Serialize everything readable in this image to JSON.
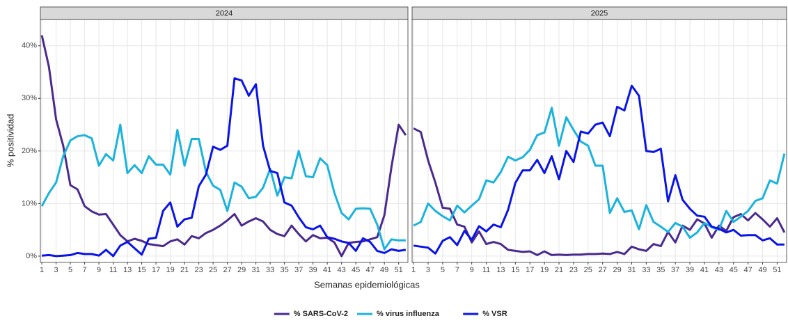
{
  "chart_data": [
    {
      "type": "line",
      "title": "2024",
      "x_label": "Semanas epidemiológicas",
      "y_label": "% positividad",
      "grid": true,
      "legend": "bottom",
      "x": [
        1,
        2,
        3,
        4,
        5,
        6,
        7,
        8,
        9,
        10,
        11,
        12,
        13,
        14,
        15,
        16,
        17,
        18,
        19,
        20,
        21,
        22,
        23,
        24,
        25,
        26,
        27,
        28,
        29,
        30,
        31,
        32,
        33,
        34,
        35,
        36,
        37,
        38,
        39,
        40,
        41,
        42,
        43,
        44,
        45,
        46,
        47,
        48,
        49,
        50,
        51,
        52
      ],
      "xlim": [
        0.8,
        52.3
      ],
      "xticks": [
        1,
        3,
        5,
        7,
        9,
        11,
        13,
        15,
        17,
        19,
        21,
        23,
        25,
        27,
        29,
        31,
        33,
        35,
        37,
        39,
        41,
        43,
        45,
        47,
        49,
        51
      ],
      "ylim": [
        -1.2,
        45
      ],
      "yticks": [
        {
          "value": 0,
          "label": "0%"
        },
        {
          "value": 10,
          "label": "10%"
        },
        {
          "value": 20,
          "label": "20%"
        },
        {
          "value": 30,
          "label": "30%"
        },
        {
          "value": 40,
          "label": "40%"
        }
      ],
      "series": [
        {
          "name": "% SARS-CoV-2",
          "color": "#4b2a8f",
          "values": [
            42,
            36,
            26,
            21,
            13.5,
            12.7,
            9.5,
            8.5,
            7.9,
            8,
            6,
            4,
            2.8,
            3.3,
            2.9,
            2.3,
            2.1,
            1.9,
            2.8,
            3.2,
            2.2,
            3.8,
            3.4,
            4.4,
            5,
            5.8,
            6.8,
            8,
            5.8,
            6.6,
            7.2,
            6.6,
            5,
            4.2,
            3.8,
            5.8,
            4.2,
            2.8,
            4,
            3.4,
            3.5,
            2.6,
            0,
            2.5,
            2.7,
            2.8,
            3.2,
            3.6,
            7.8,
            17,
            25,
            23
          ]
        },
        {
          "name": "% virus influenza",
          "color": "#1ab3dd",
          "values": [
            9.5,
            12,
            14,
            19,
            22,
            22.8,
            23,
            22.4,
            17.2,
            19.4,
            18.2,
            25,
            15.8,
            17.3,
            15.8,
            19,
            17.4,
            17.4,
            15.5,
            24,
            17.2,
            22.3,
            22.3,
            16,
            13.4,
            12.6,
            8.6,
            14,
            13.2,
            11,
            11.3,
            13,
            16.6,
            11.5,
            15,
            14.8,
            20,
            15.2,
            15,
            18.6,
            17.3,
            12,
            8.2,
            7,
            9,
            9.1,
            9,
            6,
            1.3,
            3.2,
            3,
            3
          ]
        },
        {
          "name": "% VSR",
          "color": "#0a14e6",
          "values": [
            0.1,
            0.2,
            0,
            0.1,
            0.2,
            0.6,
            0.4,
            0.4,
            0.1,
            1.2,
            0,
            2,
            2.7,
            1.5,
            0.3,
            3.3,
            3.5,
            8.6,
            10.2,
            5.6,
            7,
            7.3,
            13.3,
            15.5,
            20.8,
            20.2,
            21,
            33.8,
            33.4,
            30.5,
            32.7,
            21,
            16.2,
            15.8,
            10.2,
            9.6,
            7.4,
            5.5,
            5.1,
            5.8,
            3.6,
            3.3,
            2.8,
            2.5,
            1,
            3.4,
            2.7,
            1,
            0.6,
            1.3,
            1,
            1.2
          ]
        }
      ]
    },
    {
      "type": "line",
      "title": "2025",
      "x": [
        1,
        2,
        3,
        4,
        5,
        6,
        7,
        8,
        9,
        10,
        11,
        12,
        13,
        14,
        15,
        16,
        17,
        18,
        19,
        20,
        21,
        22,
        23,
        24,
        25,
        26,
        27,
        28,
        29,
        30,
        31,
        32,
        33,
        34,
        35,
        36,
        37,
        38,
        39,
        40,
        41,
        42,
        43,
        44,
        45,
        46,
        47,
        48,
        49,
        50,
        51,
        52
      ],
      "xlim": [
        0.8,
        52.3
      ],
      "xticks": [
        1,
        3,
        5,
        7,
        9,
        11,
        13,
        15,
        17,
        19,
        21,
        23,
        25,
        27,
        29,
        31,
        33,
        35,
        37,
        39,
        41,
        43,
        45,
        47,
        49,
        51
      ],
      "ylim": [
        -1.2,
        45
      ],
      "yticks": [
        0,
        10,
        20,
        30,
        40
      ],
      "series": [
        {
          "color": "#4b2a8f",
          "values": [
            24.3,
            23.6,
            18.2,
            14,
            9.2,
            9,
            6,
            5.6,
            2.6,
            4.7,
            2.3,
            2.7,
            2.3,
            1.2,
            1,
            0.8,
            0.9,
            0.2,
            0.9,
            0.2,
            0.3,
            0.2,
            0.3,
            0.3,
            0.4,
            0.4,
            0.5,
            0.4,
            0.8,
            0.4,
            1.8,
            1.3,
            1,
            2.3,
            1.9,
            4.6,
            2.6,
            5.8,
            5,
            7,
            6.2,
            3.5,
            5.8,
            4.8,
            7.4,
            8,
            6.8,
            8.2,
            7,
            5.6,
            7.2,
            4.5
          ]
        },
        {
          "color": "#1ab3dd",
          "values": [
            5.8,
            6.5,
            10,
            8.6,
            7.6,
            6.8,
            9.6,
            8.3,
            9.6,
            10.8,
            14.4,
            14,
            16,
            18.9,
            18.2,
            18.8,
            20.2,
            23,
            23.5,
            28.2,
            21,
            26.4,
            24,
            21.8,
            21,
            17.2,
            17.2,
            8.2,
            11,
            8.4,
            8.7,
            5.1,
            9.7,
            6.5,
            5.6,
            4.6,
            6.3,
            5.6,
            3.5,
            4.5,
            6.3,
            5.5,
            5,
            8.6,
            6.5,
            7.5,
            8.6,
            10.5,
            11,
            14.4,
            13.8,
            19.5
          ]
        },
        {
          "color": "#0a14e6",
          "values": [
            2,
            1.8,
            1.6,
            0.5,
            2.9,
            3.6,
            2.1,
            4.8,
            3.1,
            5.7,
            4.7,
            6,
            5.5,
            8.8,
            13.9,
            16.3,
            16.3,
            18.3,
            15.8,
            19,
            14.6,
            20,
            17.9,
            23.7,
            23.3,
            25,
            25.4,
            22.8,
            28.4,
            27.7,
            32.4,
            30.5,
            20,
            19.8,
            20.4,
            10.4,
            15.4,
            10.7,
            9,
            7.7,
            7.5,
            5.6,
            5.2,
            4.5,
            5,
            3.9,
            4,
            4,
            3,
            3.4,
            2.2,
            2.2
          ]
        }
      ]
    }
  ]
}
